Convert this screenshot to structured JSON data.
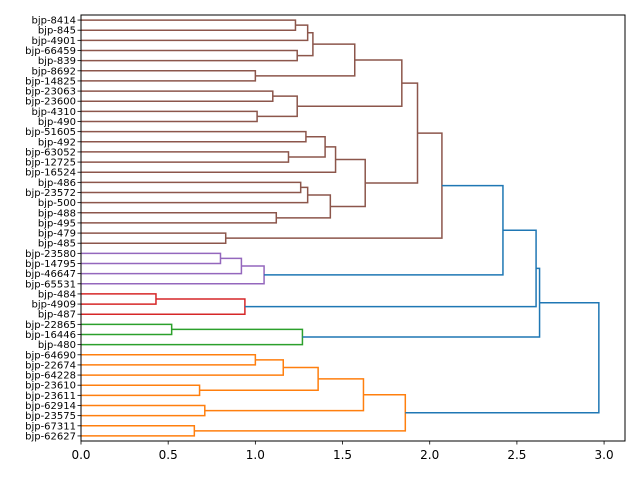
{
  "chart_data": {
    "type": "dendrogram",
    "orientation": "left",
    "title": "",
    "xlabel": "",
    "ylabel": "",
    "xlim": [
      0,
      3.12
    ],
    "xticks": [
      0.0,
      0.5,
      1.0,
      1.5,
      2.0,
      2.5,
      3.0
    ],
    "xtick_labels": [
      "0.0",
      "0.5",
      "1.0",
      "1.5",
      "2.0",
      "2.5",
      "3.0"
    ],
    "grid": false,
    "colors": {
      "brown": "#8c564b",
      "purple": "#9467bd",
      "red": "#d62728",
      "green": "#2ca02c",
      "orange": "#ff7f0e",
      "blue": "#1f77b4"
    },
    "leaves": [
      "bjp-8414",
      "bjp-845",
      "bjp-4901",
      "bjp-66459",
      "bjp-839",
      "bjp-8692",
      "bjp-14825",
      "bjp-23063",
      "bjp-23600",
      "bjp-4310",
      "bjp-490",
      "bjp-51605",
      "bjp-492",
      "bjp-63052",
      "bjp-12725",
      "bjp-16524",
      "bjp-486",
      "bjp-23572",
      "bjp-500",
      "bjp-488",
      "bjp-495",
      "bjp-479",
      "bjp-485",
      "bjp-23580",
      "bjp-14795",
      "bjp-46647",
      "bjp-65531",
      "bjp-484",
      "bjp-4909",
      "bjp-487",
      "bjp-22865",
      "bjp-16446",
      "bjp-480",
      "bjp-64690",
      "bjp-22674",
      "bjp-64228",
      "bjp-23610",
      "bjp-23611",
      "bjp-62914",
      "bjp-23575",
      "bjp-67311",
      "bjp-62627"
    ],
    "merges": [
      {
        "id": "a1",
        "left": 0,
        "right": 1,
        "height": 1.23,
        "color": "brown"
      },
      {
        "id": "a2",
        "left": "a1",
        "right": 2,
        "height": 1.3,
        "color": "brown"
      },
      {
        "id": "a3",
        "left": 3,
        "right": 4,
        "height": 1.24,
        "color": "brown"
      },
      {
        "id": "a4",
        "left": "a2",
        "right": "a3",
        "height": 1.33,
        "color": "brown"
      },
      {
        "id": "a5",
        "left": 5,
        "right": 6,
        "height": 1.0,
        "color": "brown"
      },
      {
        "id": "a6",
        "left": "a4",
        "right": "a5",
        "height": 1.57,
        "color": "brown"
      },
      {
        "id": "a7",
        "left": 7,
        "right": 8,
        "height": 1.1,
        "color": "brown"
      },
      {
        "id": "a8",
        "left": 9,
        "right": 10,
        "height": 1.01,
        "color": "brown"
      },
      {
        "id": "a9",
        "left": "a7",
        "right": "a8",
        "height": 1.24,
        "color": "brown"
      },
      {
        "id": "a10",
        "left": "a6",
        "right": "a9",
        "height": 1.84,
        "color": "brown"
      },
      {
        "id": "b1",
        "left": 11,
        "right": 12,
        "height": 1.29,
        "color": "brown"
      },
      {
        "id": "b2",
        "left": 13,
        "right": 14,
        "height": 1.19,
        "color": "brown"
      },
      {
        "id": "b3",
        "left": "b1",
        "right": "b2",
        "height": 1.4,
        "color": "brown"
      },
      {
        "id": "b4",
        "left": "b3",
        "right": 15,
        "height": 1.46,
        "color": "brown"
      },
      {
        "id": "b5",
        "left": 16,
        "right": 17,
        "height": 1.26,
        "color": "brown"
      },
      {
        "id": "b6",
        "left": "b5",
        "right": 18,
        "height": 1.3,
        "color": "brown"
      },
      {
        "id": "b7",
        "left": 19,
        "right": 20,
        "height": 1.12,
        "color": "brown"
      },
      {
        "id": "b8",
        "left": "b6",
        "right": "b7",
        "height": 1.43,
        "color": "brown"
      },
      {
        "id": "b9",
        "left": "b4",
        "right": "b8",
        "height": 1.63,
        "color": "brown"
      },
      {
        "id": "c1",
        "left": "a10",
        "right": "b9",
        "height": 1.93,
        "color": "brown"
      },
      {
        "id": "c2",
        "left": 21,
        "right": 22,
        "height": 0.83,
        "color": "brown"
      },
      {
        "id": "c3",
        "left": "c1",
        "right": "c2",
        "height": 2.07,
        "color": "brown"
      },
      {
        "id": "p1",
        "left": 23,
        "right": 24,
        "height": 0.8,
        "color": "purple"
      },
      {
        "id": "p2",
        "left": "p1",
        "right": 25,
        "height": 0.92,
        "color": "purple"
      },
      {
        "id": "p3",
        "left": "p2",
        "right": 26,
        "height": 1.05,
        "color": "purple"
      },
      {
        "id": "r1",
        "left": 27,
        "right": 28,
        "height": 0.43,
        "color": "red"
      },
      {
        "id": "r2",
        "left": "r1",
        "right": 29,
        "height": 0.94,
        "color": "red"
      },
      {
        "id": "g1",
        "left": 30,
        "right": 31,
        "height": 0.52,
        "color": "green"
      },
      {
        "id": "g2",
        "left": "g1",
        "right": 32,
        "height": 1.27,
        "color": "green"
      },
      {
        "id": "o1",
        "left": 33,
        "right": 34,
        "height": 1.0,
        "color": "orange"
      },
      {
        "id": "o2",
        "left": "o1",
        "right": 35,
        "height": 1.16,
        "color": "orange"
      },
      {
        "id": "o3",
        "left": 36,
        "right": 37,
        "height": 0.68,
        "color": "orange"
      },
      {
        "id": "o4",
        "left": "o2",
        "right": "o3",
        "height": 1.36,
        "color": "orange"
      },
      {
        "id": "o5",
        "left": 38,
        "right": 39,
        "height": 0.71,
        "color": "orange"
      },
      {
        "id": "o6",
        "left": "o4",
        "right": "o5",
        "height": 1.62,
        "color": "orange"
      },
      {
        "id": "o7",
        "left": 40,
        "right": 41,
        "height": 0.65,
        "color": "orange"
      },
      {
        "id": "o8",
        "left": "o6",
        "right": "o7",
        "height": 1.86,
        "color": "orange"
      },
      {
        "id": "z1",
        "left": "c3",
        "right": "p3",
        "height": 2.42,
        "color": "blue"
      },
      {
        "id": "z2",
        "left": "z1",
        "right": "r2",
        "height": 2.61,
        "color": "blue"
      },
      {
        "id": "z3",
        "left": "z2",
        "right": "g2",
        "height": 2.63,
        "color": "blue"
      },
      {
        "id": "z4",
        "left": "z3",
        "right": "o8",
        "height": 2.97,
        "color": "blue"
      }
    ]
  }
}
